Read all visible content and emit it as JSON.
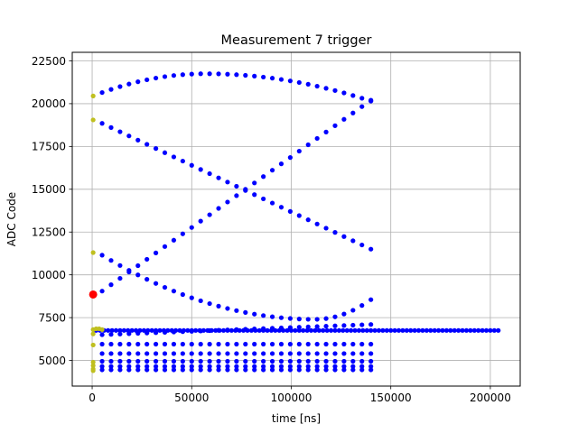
{
  "chart_data": {
    "type": "scatter",
    "title": "Measurement 7 trigger",
    "xlabel": "time [ns]",
    "ylabel": "ADC Code",
    "xlim": [
      -10000,
      215000
    ],
    "ylim": [
      3500,
      23000
    ],
    "xticks": [
      0,
      50000,
      100000,
      150000,
      200000
    ],
    "yticks": [
      5000,
      7500,
      10000,
      12500,
      15000,
      17500,
      20000,
      22500
    ],
    "grid": true,
    "legend": "none",
    "colors": {
      "main": "#0000ff",
      "pretrigger": "#bfbf1f",
      "trigger": "#ff0000"
    },
    "series": [
      {
        "color": "main",
        "x": [
          2000,
          204000
        ],
        "y": [
          6750,
          6750
        ],
        "step": 2000
      },
      {
        "color": "main",
        "x": [
          5000,
          140000
        ],
        "y": [
          20650,
          20150
        ],
        "step": 4500,
        "peak": [
          57000,
          21750
        ]
      },
      {
        "color": "main",
        "x": [
          5000,
          140000
        ],
        "y": [
          18850,
          11500
        ],
        "step": 4500
      },
      {
        "color": "main",
        "x": [
          5000,
          140000
        ],
        "y": [
          9050,
          20200
        ],
        "step": 4500
      },
      {
        "color": "main",
        "x": [
          5000,
          140000
        ],
        "y": [
          11150,
          8550
        ],
        "step": 4500,
        "valley": [
          112000,
          7400
        ]
      },
      {
        "color": "main",
        "x": [
          5000,
          140000
        ],
        "y": [
          6500,
          7100
        ],
        "step": 4500
      },
      {
        "color": "main",
        "x": [
          5000,
          140000
        ],
        "y": [
          5950,
          5950
        ],
        "step": 4500
      },
      {
        "color": "main",
        "x": [
          5000,
          140000
        ],
        "y": [
          5400,
          5400
        ],
        "step": 4500
      },
      {
        "color": "main",
        "x": [
          5000,
          140000
        ],
        "y": [
          4950,
          4950
        ],
        "step": 4500
      },
      {
        "color": "main",
        "x": [
          5000,
          140000
        ],
        "y": [
          4650,
          4650
        ],
        "step": 4500
      },
      {
        "color": "main",
        "x": [
          5000,
          140000
        ],
        "y": [
          4450,
          4450
        ],
        "step": 4500
      },
      {
        "color": "pretrigger",
        "points": [
          [
            500,
            20450
          ],
          [
            500,
            19050
          ],
          [
            500,
            11300
          ],
          [
            500,
            6800
          ],
          [
            500,
            6550
          ],
          [
            500,
            5900
          ],
          [
            500,
            4900
          ],
          [
            500,
            4700
          ],
          [
            500,
            4500
          ],
          [
            500,
            4400
          ],
          [
            2000,
            6850
          ],
          [
            3500,
            6850
          ],
          [
            5000,
            6800
          ]
        ]
      },
      {
        "color": "trigger",
        "points": [
          [
            500,
            8850
          ]
        ]
      }
    ]
  }
}
